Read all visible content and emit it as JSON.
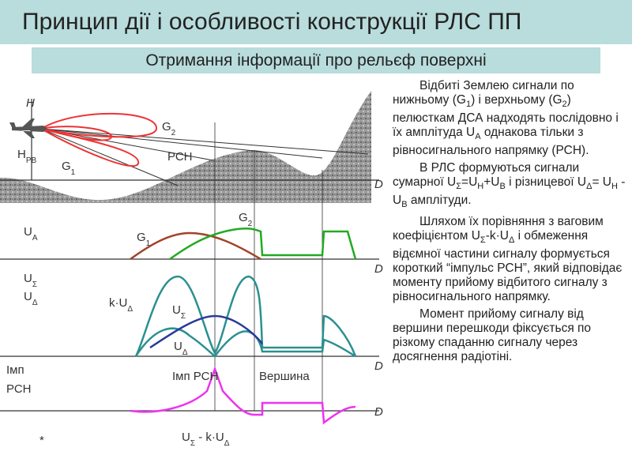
{
  "title": "Принцип дії і особливості конструкції РЛС ПП",
  "subtitle": "Отримання інформації про рельєф поверхні",
  "paragraphs": [
    [
      "Відбиті Землею сигнали по нижньому (G",
      "1",
      ") і верхньому (G",
      "2",
      ") пелюсткам ДСА надходять послідовно і їх амплітуда U",
      "A",
      " однакова тільки з рівносигнального напрямку (РСН)."
    ],
    [
      "В РЛС формуються сигнали сумарної U",
      "Σ",
      "=U",
      "Н",
      "+U",
      "В",
      " і різницевої U",
      "Δ",
      "= U",
      "Н",
      " - U",
      "В",
      " амплітуди."
    ],
    [
      "Шляхом їх порівняння з ваговим коефіцієнтом U",
      "Σ",
      "-k·U",
      "Δ",
      " і обмеження відємної частини сигналу формується короткий “імпульс РСН”, який відповідає моменту прийому відбитого сигналу з рівносигнального напрямку."
    ],
    [
      "Момент прийому сигналу від вершини перешкоди фіксується по різкому спаданню сигналу через досягнення радіотіні."
    ]
  ],
  "diagram": {
    "h": "H",
    "h_rv": [
      "H",
      "РВ"
    ],
    "g2_top": [
      "G",
      "2"
    ],
    "g1_top": [
      "G",
      "1"
    ],
    "rsn": "РСН",
    "d": [
      "D",
      "D",
      "D",
      "D"
    ],
    "ua": [
      "U",
      "A"
    ],
    "g1": [
      "G",
      "1"
    ],
    "g2": [
      "G",
      "2"
    ],
    "us": [
      "U",
      "Σ"
    ],
    "ud": [
      "U",
      "Δ"
    ],
    "kud": [
      "k·U",
      "Δ"
    ],
    "us_curve": [
      "U",
      "Σ"
    ],
    "ud_curve": [
      "U",
      "Δ"
    ],
    "imp_left": [
      "Імп",
      "РСН"
    ],
    "imp_rsn": "Імп РСН",
    "vershyna": "Вершина",
    "formula": [
      "U",
      "Σ",
      " - k·U",
      "Δ"
    ],
    "star": "*"
  }
}
